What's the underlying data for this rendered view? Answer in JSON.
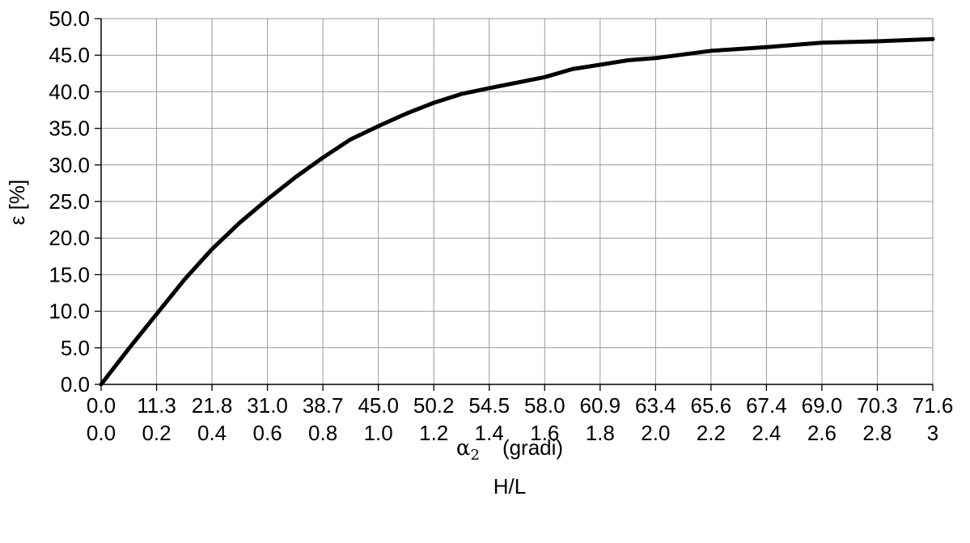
{
  "chart_data": {
    "type": "line",
    "ylim": [
      0,
      50
    ],
    "grid": true,
    "y_ticks": [
      "0.0",
      "5.0",
      "10.0",
      "15.0",
      "20.0",
      "25.0",
      "30.0",
      "35.0",
      "40.0",
      "45.0",
      "50.0"
    ],
    "x_ticks_angle": [
      "0.0",
      "11.3",
      "21.8",
      "31.0",
      "38.7",
      "45.0",
      "50.2",
      "54.5",
      "58.0",
      "60.9",
      "63.4",
      "65.6",
      "67.4",
      "69.0",
      "70.3",
      "71.6"
    ],
    "x_ticks_ratio": [
      "0.0",
      "0.2",
      "0.4",
      "0.6",
      "0.8",
      "1.0",
      "1.2",
      "1.4",
      "1.6",
      "1.8",
      "2.0",
      "2.2",
      "2.4",
      "2.6",
      "2.8",
      "3"
    ],
    "xlim": [
      0,
      3
    ],
    "ylabel": "ε [%]",
    "xlabel_symbol": "α",
    "xlabel_subscript": "2",
    "xlabel_unit": "(gradi)",
    "xlabel_ratio": "H/L",
    "series": [
      {
        "color": "#000000",
        "x": [
          0,
          0.1,
          0.2,
          0.3,
          0.4,
          0.5,
          0.6,
          0.7,
          0.8,
          0.9,
          1.0,
          1.1,
          1.2,
          1.3,
          1.4,
          1.6,
          1.7,
          1.8,
          1.9,
          2.0,
          2.2,
          2.4,
          2.6,
          2.8,
          3.0
        ],
        "y": [
          0,
          4.9,
          9.6,
          14.3,
          18.5,
          22.1,
          25.3,
          28.3,
          31.0,
          33.5,
          35.3,
          37.0,
          38.5,
          39.7,
          40.5,
          42.0,
          43.1,
          43.7,
          44.3,
          44.6,
          45.6,
          46.1,
          46.7,
          46.9,
          47.2
        ]
      }
    ]
  }
}
